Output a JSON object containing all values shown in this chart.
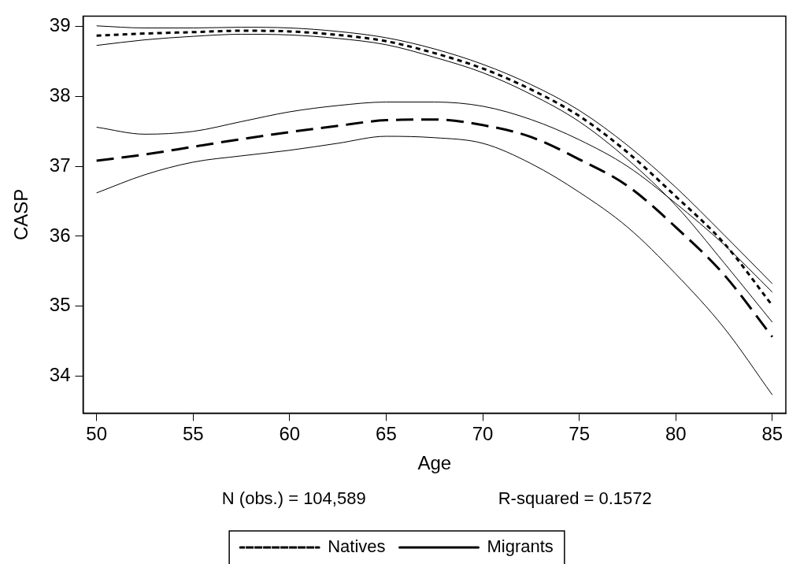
{
  "chart_data": {
    "type": "line",
    "xlabel": "Age",
    "ylabel": "CASP",
    "annotations": [
      "N (obs.) = 104,589",
      "R-squared = 0.1572"
    ],
    "x": [
      50,
      52.5,
      55,
      57.5,
      60,
      62.5,
      65,
      67.5,
      70,
      72.5,
      75,
      77.5,
      80,
      82.5,
      85
    ],
    "series": [
      {
        "name": "Natives",
        "color": "#000000",
        "line_style": "dotted",
        "values": [
          38.87,
          38.9,
          38.92,
          38.94,
          38.93,
          38.88,
          38.79,
          38.62,
          38.4,
          38.1,
          37.72,
          37.2,
          36.57,
          35.9,
          35.01
        ]
      },
      {
        "name": "Migrants",
        "color": "#000000",
        "line_style": "dashed",
        "values": [
          37.08,
          37.17,
          37.28,
          37.39,
          37.49,
          37.58,
          37.66,
          37.67,
          37.59,
          37.42,
          37.1,
          36.72,
          36.13,
          35.45,
          34.56
        ]
      },
      {
        "color": "#000000",
        "line_style": "solid",
        "values": [
          38.73,
          38.81,
          38.86,
          38.89,
          38.88,
          38.83,
          38.74,
          38.56,
          38.34,
          38.03,
          37.64,
          37.1,
          36.44,
          35.62,
          34.77
        ]
      },
      {
        "color": "#000000",
        "line_style": "solid",
        "values": [
          39.01,
          38.98,
          38.98,
          38.99,
          38.98,
          38.93,
          38.84,
          38.68,
          38.46,
          38.17,
          37.8,
          37.3,
          36.7,
          36.02,
          35.32
        ]
      },
      {
        "color": "#000000",
        "line_style": "solid",
        "values": [
          36.62,
          36.88,
          37.06,
          37.15,
          37.23,
          37.33,
          37.43,
          37.41,
          37.33,
          37.04,
          36.63,
          36.13,
          35.46,
          34.69,
          33.73
        ]
      },
      {
        "color": "#000000",
        "line_style": "solid",
        "values": [
          37.56,
          37.46,
          37.5,
          37.64,
          37.78,
          37.87,
          37.92,
          37.92,
          37.86,
          37.67,
          37.38,
          37.0,
          36.47,
          35.88,
          35.2
        ]
      }
    ],
    "xlim": [
      49.3,
      85.7
    ],
    "xticks": [
      50,
      55,
      60,
      65,
      70,
      75,
      80,
      85
    ],
    "ylim": [
      33.47,
      39.15
    ],
    "yticks": [
      34,
      35,
      36,
      37,
      38,
      39
    ],
    "grid": false,
    "legend": "bottom",
    "marker": "none"
  }
}
